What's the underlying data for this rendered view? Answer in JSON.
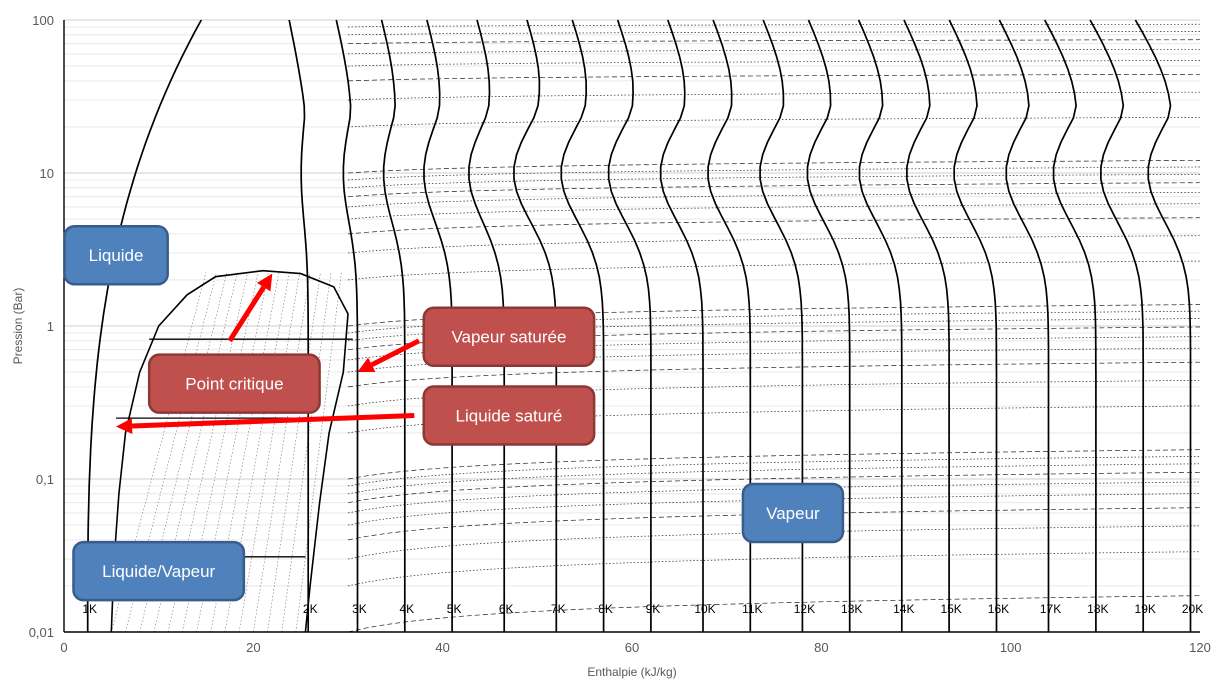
{
  "chart_data": {
    "type": "line",
    "title": "",
    "xlabel": "Enthalpie (kJ/kg)",
    "ylabel": "Pression (Bar)",
    "xlim": [
      0,
      120
    ],
    "ylim": [
      0.01,
      100
    ],
    "yscale": "log",
    "x_ticks": [
      0,
      20,
      40,
      60,
      80,
      100,
      120
    ],
    "y_ticks": [
      {
        "value": 0.01,
        "label": "0,01"
      },
      {
        "value": 0.1,
        "label": "0,1"
      },
      {
        "value": 1,
        "label": "1"
      },
      {
        "value": 10,
        "label": "10"
      },
      {
        "value": 100,
        "label": "100"
      }
    ],
    "grid": true,
    "saturation_dome": {
      "liquid": [
        [
          5,
          0.01
        ],
        [
          5.3,
          0.03
        ],
        [
          5.8,
          0.08
        ],
        [
          6.5,
          0.2
        ],
        [
          8,
          0.5
        ],
        [
          10,
          1
        ],
        [
          13,
          1.6
        ],
        [
          16,
          2.1
        ],
        [
          21,
          2.3
        ]
      ],
      "vapor": [
        [
          21,
          2.3
        ],
        [
          25,
          2.2
        ],
        [
          28.5,
          1.8
        ],
        [
          30,
          1.2
        ],
        [
          29.5,
          0.5
        ],
        [
          28,
          0.2
        ],
        [
          27,
          0.07
        ],
        [
          26,
          0.02
        ],
        [
          25.5,
          0.01
        ]
      ]
    },
    "isotherms": [
      {
        "label": "1K",
        "label_x": 2.5
      },
      {
        "label": "2K",
        "label_x": 25.8
      },
      {
        "label": "3K",
        "label_x": 31
      },
      {
        "label": "4K",
        "label_x": 36
      },
      {
        "label": "5K",
        "label_x": 41
      },
      {
        "label": "6K",
        "label_x": 46.5
      },
      {
        "label": "7K",
        "label_x": 52
      },
      {
        "label": "8K",
        "label_x": 57
      },
      {
        "label": "9K",
        "label_x": 62
      },
      {
        "label": "10K",
        "label_x": 67.5
      },
      {
        "label": "11K",
        "label_x": 72.5
      },
      {
        "label": "12K",
        "label_x": 78
      },
      {
        "label": "13K",
        "label_x": 83
      },
      {
        "label": "14K",
        "label_x": 88.5
      },
      {
        "label": "15K",
        "label_x": 93.5
      },
      {
        "label": "16K",
        "label_x": 98.5
      },
      {
        "label": "17K",
        "label_x": 104
      },
      {
        "label": "18K",
        "label_x": 109
      },
      {
        "label": "19K",
        "label_x": 114
      },
      {
        "label": "20K",
        "label_x": 119
      }
    ],
    "annotations": [
      {
        "text": "Liquide",
        "style": "blue",
        "x": 5.5,
        "y": 2.9
      },
      {
        "text": "Point critique",
        "style": "red",
        "x": 18,
        "y": 0.42
      },
      {
        "text": "Vapeur saturée",
        "style": "red",
        "x": 47,
        "y": 0.85
      },
      {
        "text": "Liquide saturé",
        "style": "red",
        "x": 47,
        "y": 0.26
      },
      {
        "text": "Liquide/Vapeur",
        "style": "blue",
        "x": 10,
        "y": 0.025
      },
      {
        "text": "Vapeur",
        "style": "blue",
        "x": 77,
        "y": 0.06
      }
    ],
    "arrows": [
      {
        "from": [
          17.5,
          0.8
        ],
        "to": [
          22,
          2.2
        ]
      },
      {
        "from": [
          37.5,
          0.8
        ],
        "to": [
          31,
          0.5
        ]
      },
      {
        "from": [
          37,
          0.26
        ],
        "to": [
          5.5,
          0.22
        ]
      }
    ],
    "colors": {
      "blue_box": "#4f81bd",
      "blue_border": "#385d8a",
      "red_box": "#c0504d",
      "red_border": "#8c3836",
      "arrow": "#ff0000"
    }
  }
}
